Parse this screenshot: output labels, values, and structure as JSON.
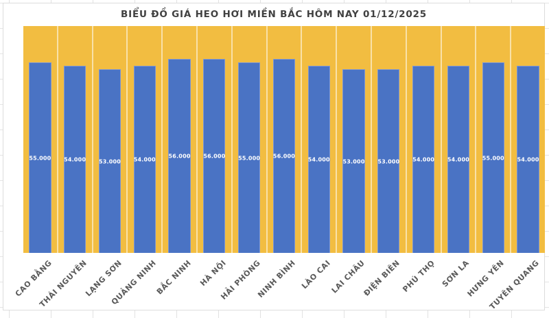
{
  "chart_data": {
    "type": "bar",
    "title": "BIỂU ĐỒ GIÁ HEO HƠI MIỀN BẮC HÔM NAY 01/12/2025",
    "categories": [
      "CAO BẰNG",
      "THÁI NGUYÊN",
      "LẠNG SƠN",
      "QUẢNG NINH",
      "BẮC NINH",
      "HÀ NỘI",
      "HẢI PHÒNG",
      "NINH BÌNH",
      "LÀO CAI",
      "LAI CHÂU",
      "ĐIỆN BIÊN",
      "PHÚ THỌ",
      "SƠN LA",
      "HƯNG YÊN",
      "TUYÊN QUANG"
    ],
    "values": [
      55000,
      54000,
      53000,
      54000,
      56000,
      56000,
      55000,
      56000,
      54000,
      53000,
      53000,
      54000,
      54000,
      55000,
      54000
    ],
    "value_labels": [
      "55.000",
      "54.000",
      "53.000",
      "54.000",
      "56.000",
      "56.000",
      "55.000",
      "56.000",
      "54.000",
      "53.000",
      "53.000",
      "54.000",
      "54.000",
      "55.000",
      "54.000"
    ],
    "xlabel": "",
    "ylabel": "",
    "ylim": [
      0,
      65500
    ],
    "grid": false,
    "legend": "none",
    "colors": {
      "bar_fill": "#4a73c4",
      "bar_border": "#7e97d4",
      "plot_background": "#f2bd41",
      "value_label": "#ffffff",
      "category_label": "#595959",
      "title": "#404040",
      "chart_border": "#dcdcdc",
      "sheet_gridline": "#e2e2e2"
    }
  }
}
